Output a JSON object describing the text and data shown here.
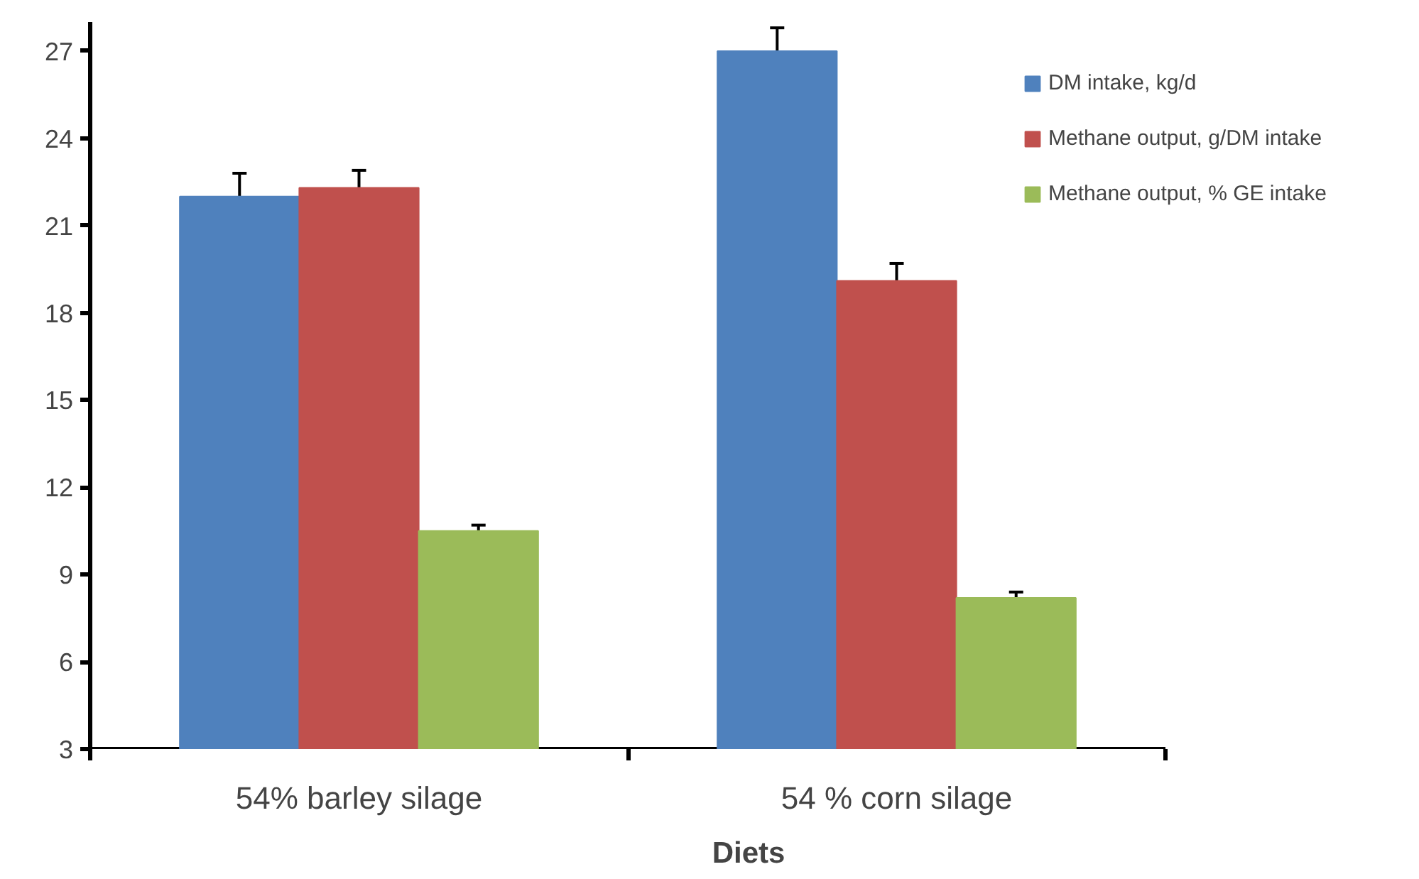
{
  "chart_data": {
    "type": "bar",
    "xlabel": "Diets",
    "categories": [
      "54% barley silage",
      "54 % corn silage"
    ],
    "series": [
      {
        "name": "DM intake, kg/d",
        "color": "#4f81bd",
        "values": [
          22.0,
          27.0
        ],
        "errors": [
          0.8,
          0.8
        ]
      },
      {
        "name": "Methane output, g/DM intake",
        "color": "#c0504d",
        "values": [
          22.3,
          19.1
        ],
        "errors": [
          0.6,
          0.6
        ]
      },
      {
        "name": "Methane output, % GE intake",
        "color": "#9bbb59",
        "values": [
          10.5,
          8.2
        ],
        "errors": [
          0.2,
          0.2
        ]
      }
    ],
    "ylim": [
      3,
      28
    ],
    "yticks": [
      3,
      6,
      9,
      12,
      15,
      18,
      21,
      24,
      27
    ],
    "grid": false,
    "legend": "top right"
  }
}
